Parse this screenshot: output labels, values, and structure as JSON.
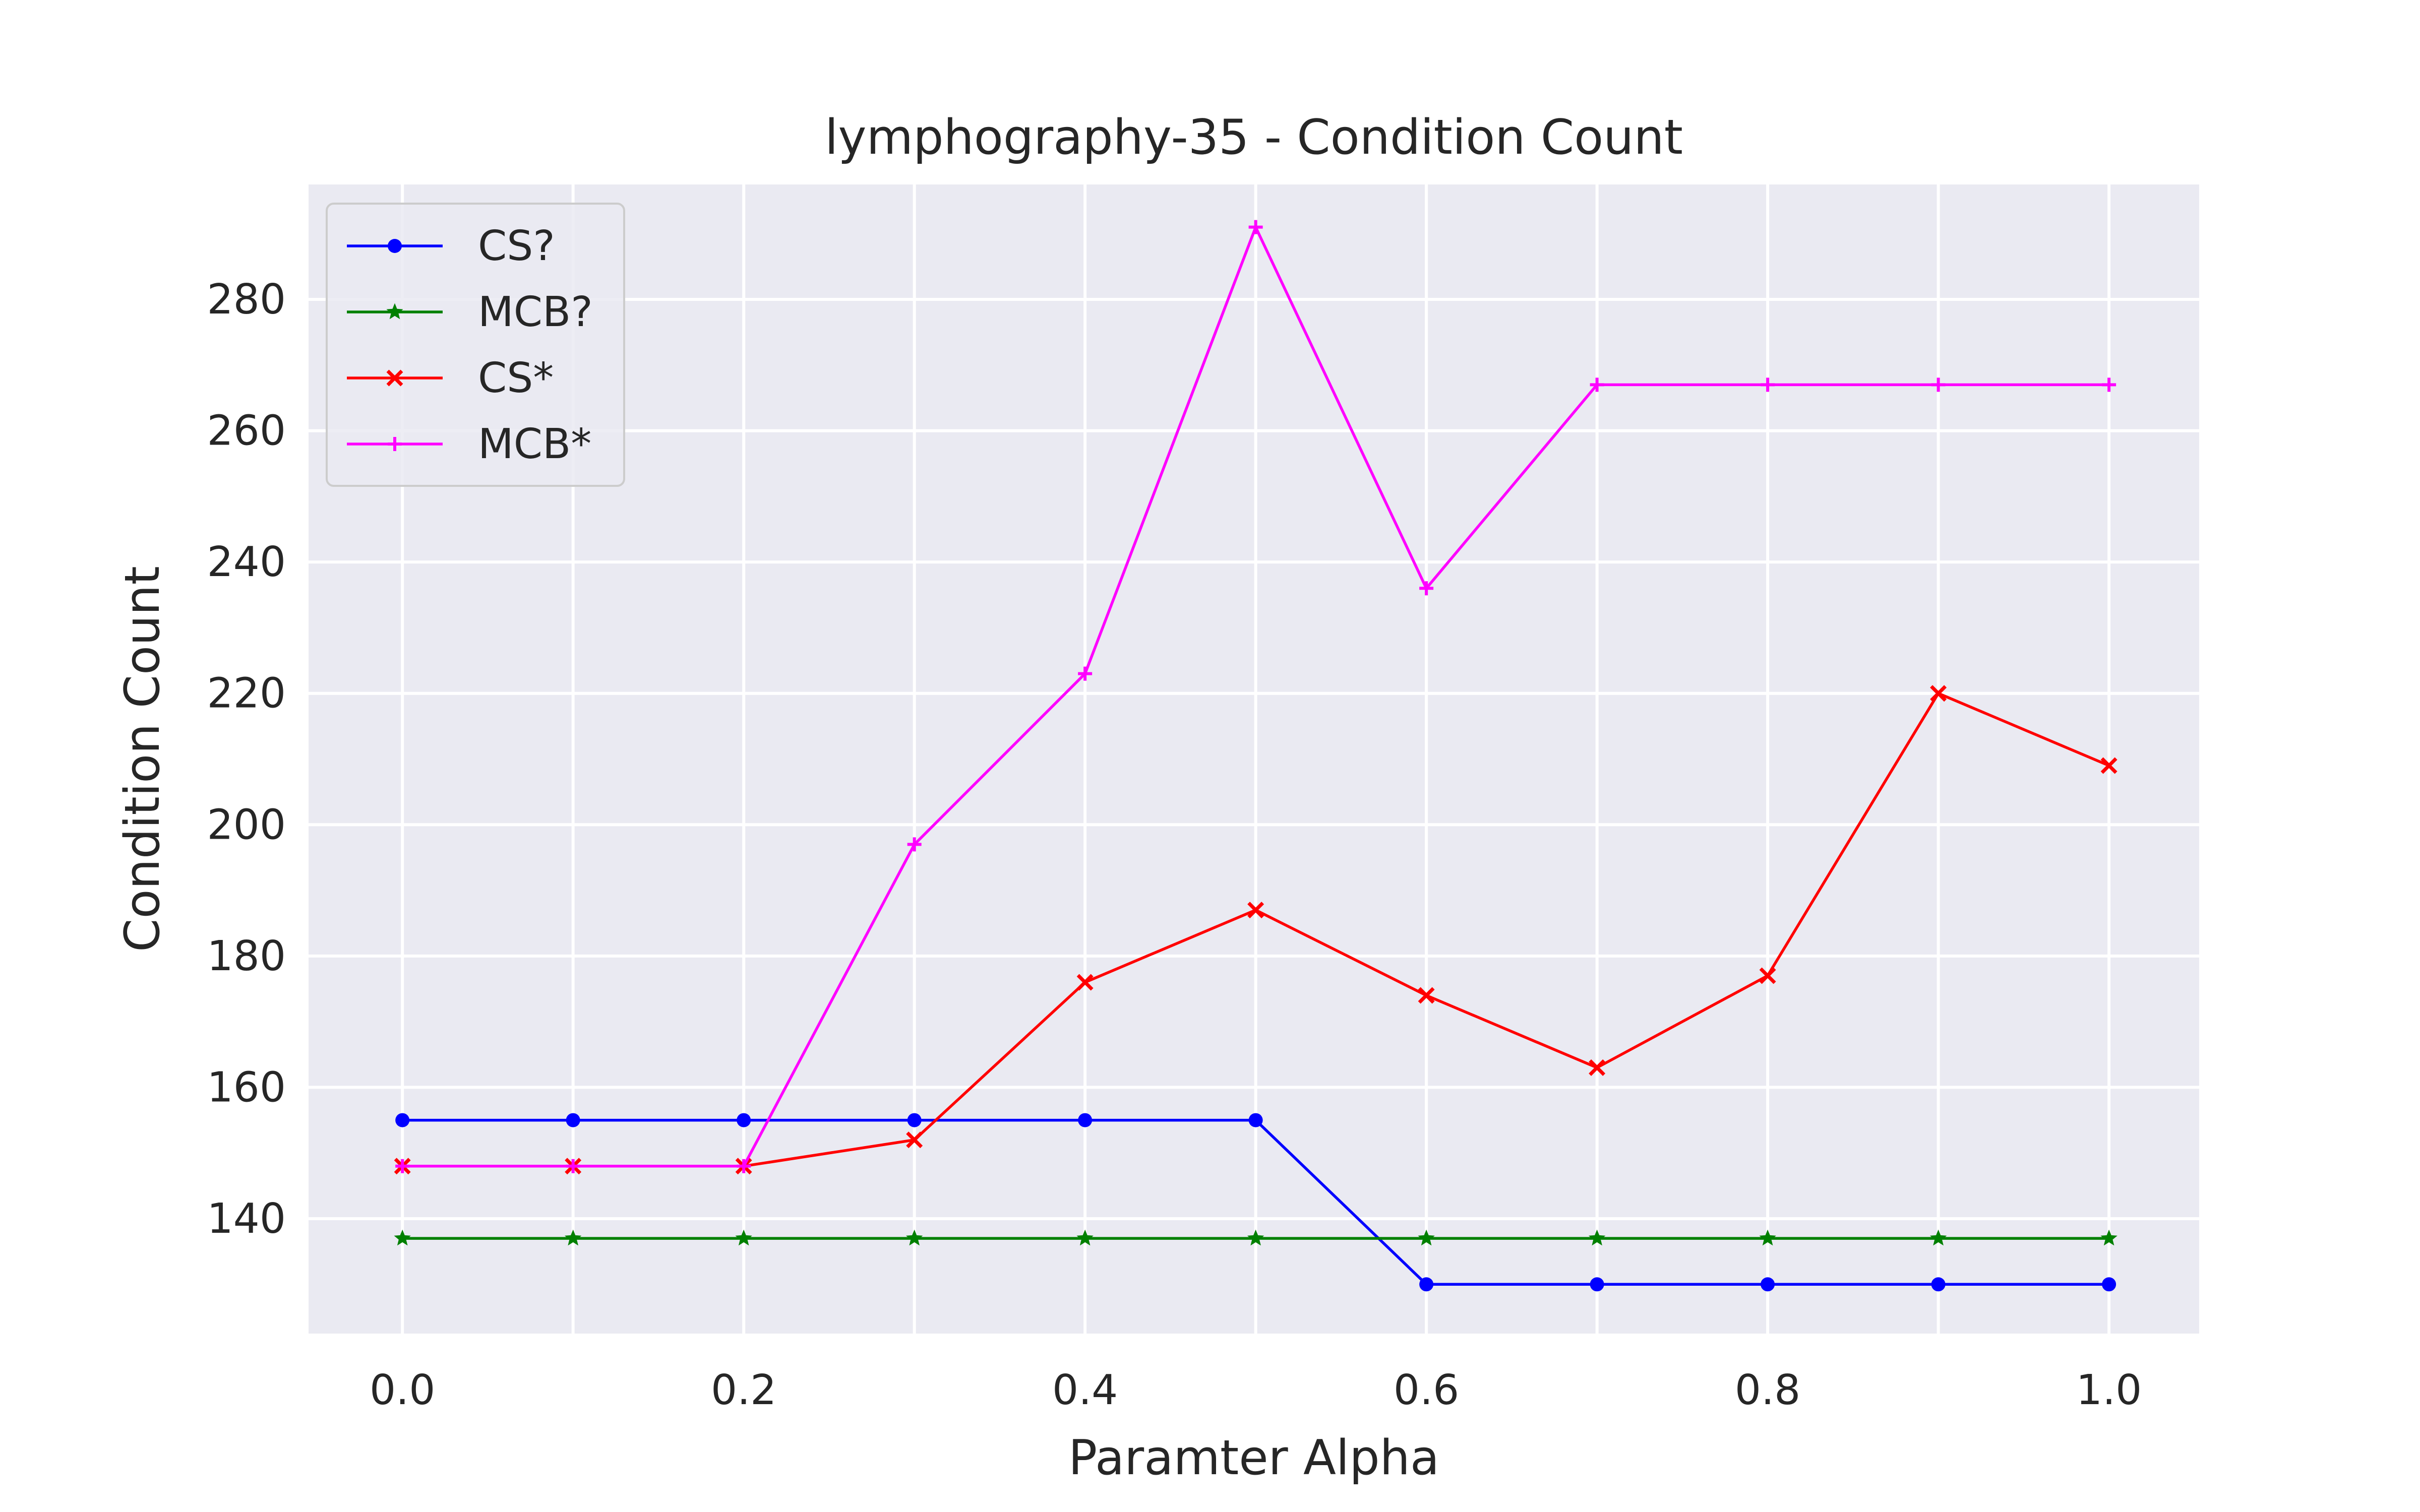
{
  "chart_data": {
    "type": "line",
    "title": "lymphography-35 - Condition Count",
    "xlabel": "Paramter Alpha",
    "ylabel": "Condition Count",
    "x": [
      0.0,
      0.1,
      0.2,
      0.3,
      0.4,
      0.5,
      0.6,
      0.7,
      0.8,
      0.9,
      1.0
    ],
    "xlim": [
      -0.055,
      1.0
    ],
    "ylim": [
      122.5,
      297.5
    ],
    "x_ticks": [
      0.0,
      0.2,
      0.4,
      0.6,
      0.8,
      1.0
    ],
    "x_tick_labels": [
      "0.0",
      "0.2",
      "0.4",
      "0.6",
      "0.8",
      "1.0"
    ],
    "y_ticks": [
      140,
      160,
      180,
      200,
      220,
      240,
      260,
      280
    ],
    "y_tick_labels": [
      "140",
      "160",
      "180",
      "200",
      "220",
      "240",
      "260",
      "280"
    ],
    "x_gridlines": [
      0.0,
      0.1,
      0.2,
      0.3,
      0.4,
      0.5,
      0.6,
      0.7,
      0.8,
      0.9,
      1.0
    ],
    "grid": true,
    "background": "#eaeaf2",
    "legend_position": "top-left",
    "series": [
      {
        "name": "CS?",
        "color": "#0000ff",
        "marker": "circle",
        "values": [
          155,
          155,
          155,
          155,
          155,
          155,
          130,
          130,
          130,
          130,
          130
        ]
      },
      {
        "name": "MCB?",
        "color": "#008000",
        "marker": "star",
        "values": [
          137,
          137,
          137,
          137,
          137,
          137,
          137,
          137,
          137,
          137,
          137
        ]
      },
      {
        "name": "CS*",
        "color": "#ff0000",
        "marker": "x",
        "values": [
          148,
          148,
          148,
          152,
          176,
          187,
          174,
          163,
          177,
          220,
          209
        ]
      },
      {
        "name": "MCB*",
        "color": "#ff00ff",
        "marker": "plus",
        "values": [
          148,
          148,
          148,
          197,
          223,
          291,
          236,
          267,
          267,
          267,
          267
        ]
      }
    ]
  }
}
